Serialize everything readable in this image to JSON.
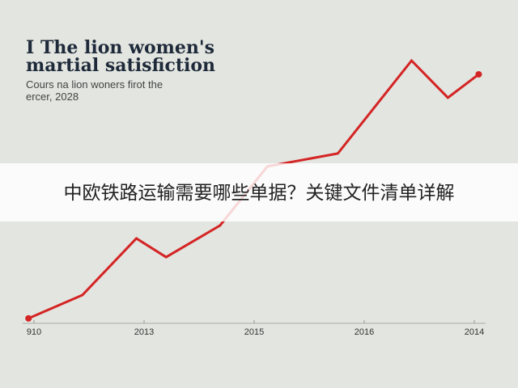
{
  "chart_data": {
    "type": "line",
    "title": [
      "I The lion women's",
      "martial satisfiction"
    ],
    "subtitle": [
      "Cours na lion woners firot the",
      "ercer, 2028"
    ],
    "x": [
      -0.05,
      0.44,
      0.93,
      1.2,
      1.69,
      2.12,
      2.76,
      3.43,
      3.76,
      4.04
    ],
    "xlim": [
      -0.1,
      4.1
    ],
    "xticks": [
      {
        "value": 0,
        "label": "910"
      },
      {
        "value": 1,
        "label": "2013"
      },
      {
        "value": 2,
        "label": "2015"
      },
      {
        "value": 3,
        "label": "2016"
      },
      {
        "value": 4,
        "label": "2014"
      }
    ],
    "ylim": [
      0,
      100
    ],
    "series": [
      {
        "color": "#d42424",
        "values": [
          1.8,
          10.3,
          30.9,
          24.1,
          35.6,
          57.1,
          61.8,
          95.6,
          82.1,
          90.6
        ]
      }
    ]
  },
  "banner": {
    "text": "中欧铁路运输需要哪些单据？关键文件清单详解"
  }
}
